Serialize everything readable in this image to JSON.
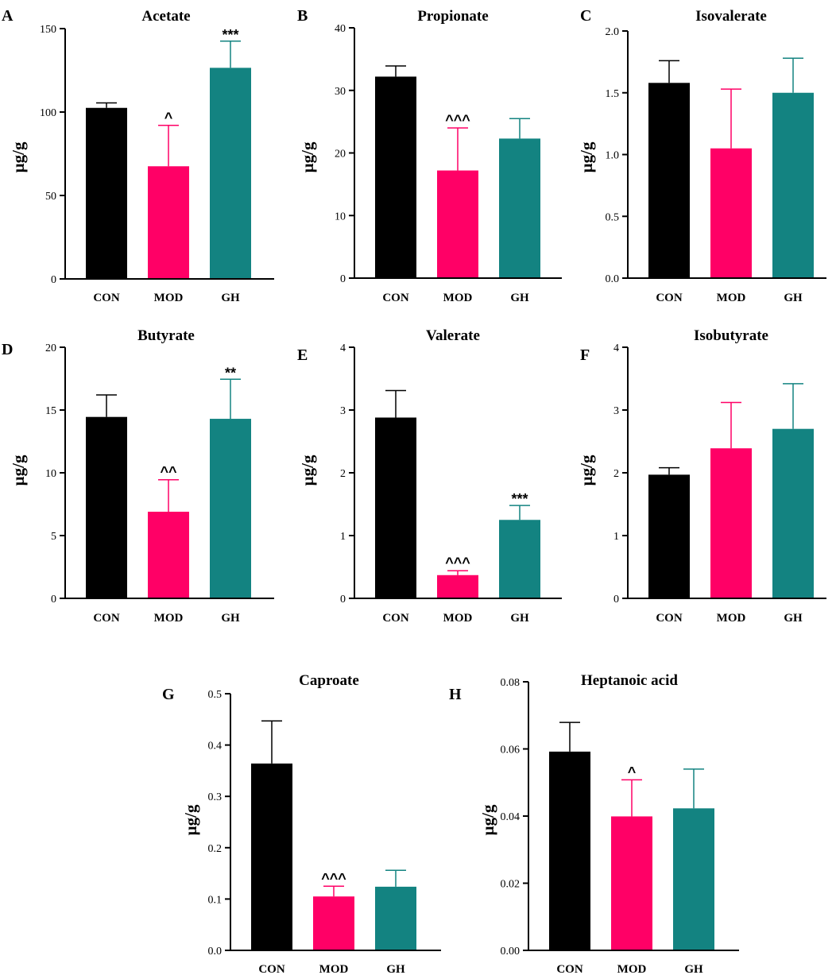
{
  "figure": {
    "y_axis_unit": "µg/g"
  },
  "colors": {
    "CON": "#000000",
    "MOD": "#ff0066",
    "GH": "#138381"
  },
  "chart_data": [
    {
      "panel": "A",
      "title": "Acetate",
      "type": "bar",
      "ylabel": "µg/g",
      "categories": [
        "CON",
        "MOD",
        "GH"
      ],
      "values": [
        102.5,
        67.5,
        126.5
      ],
      "errors": [
        3,
        24.5,
        16
      ],
      "ylim": [
        0,
        150
      ],
      "yticks": [
        "0",
        "50",
        "100",
        "150"
      ],
      "tick_values": [
        0,
        50,
        100,
        150
      ],
      "annotations": [
        "",
        "^",
        "***"
      ]
    },
    {
      "panel": "B",
      "title": "Propionate",
      "type": "bar",
      "ylabel": "µg/g",
      "categories": [
        "CON",
        "MOD",
        "GH"
      ],
      "values": [
        32.2,
        17.2,
        22.3
      ],
      "errors": [
        1.7,
        6.8,
        3.2
      ],
      "ylim": [
        0,
        40
      ],
      "yticks": [
        "0",
        "10",
        "20",
        "30",
        "40"
      ],
      "tick_values": [
        0,
        10,
        20,
        30,
        40
      ],
      "annotations": [
        "",
        "^^^",
        ""
      ]
    },
    {
      "panel": "C",
      "title": "Isovalerate",
      "type": "bar",
      "ylabel": "µg/g",
      "categories": [
        "CON",
        "MOD",
        "GH"
      ],
      "values": [
        1.58,
        1.05,
        1.5
      ],
      "errors": [
        0.18,
        0.48,
        0.28
      ],
      "ylim": [
        0,
        2.0
      ],
      "yticks": [
        "0.0",
        "0.5",
        "1.0",
        "1.5",
        "2.0"
      ],
      "tick_values": [
        0,
        0.5,
        1.0,
        1.5,
        2.0
      ],
      "annotations": [
        "",
        "",
        ""
      ]
    },
    {
      "panel": "D",
      "title": "Butyrate",
      "type": "bar",
      "ylabel": "µg/g",
      "categories": [
        "CON",
        "MOD",
        "GH"
      ],
      "values": [
        14.45,
        6.9,
        14.3
      ],
      "errors": [
        1.75,
        2.55,
        3.15
      ],
      "ylim": [
        0,
        20
      ],
      "yticks": [
        "0",
        "5",
        "10",
        "15",
        "20"
      ],
      "tick_values": [
        0,
        5,
        10,
        15,
        20
      ],
      "annotations": [
        "",
        "^^",
        "**"
      ]
    },
    {
      "panel": "E",
      "title": "Valerate",
      "type": "bar",
      "ylabel": "µg/g",
      "categories": [
        "CON",
        "MOD",
        "GH"
      ],
      "values": [
        2.88,
        0.37,
        1.25
      ],
      "errors": [
        0.43,
        0.07,
        0.23
      ],
      "ylim": [
        0,
        4
      ],
      "yticks": [
        "0",
        "1",
        "2",
        "3",
        "4"
      ],
      "tick_values": [
        0,
        1,
        2,
        3,
        4
      ],
      "annotations": [
        "",
        "^^^",
        "***"
      ]
    },
    {
      "panel": "F",
      "title": "Isobutyrate",
      "type": "bar",
      "ylabel": "µg/g",
      "categories": [
        "CON",
        "MOD",
        "GH"
      ],
      "values": [
        1.97,
        2.39,
        2.7
      ],
      "errors": [
        0.11,
        0.73,
        0.72
      ],
      "ylim": [
        0,
        4
      ],
      "yticks": [
        "0",
        "1",
        "2",
        "3",
        "4"
      ],
      "tick_values": [
        0,
        1,
        2,
        3,
        4
      ],
      "annotations": [
        "",
        "",
        ""
      ]
    },
    {
      "panel": "G",
      "title": "Caproate",
      "type": "bar",
      "ylabel": "µg/g",
      "categories": [
        "CON",
        "MOD",
        "GH"
      ],
      "values": [
        0.364,
        0.105,
        0.124
      ],
      "errors": [
        0.083,
        0.02,
        0.032
      ],
      "ylim": [
        0,
        0.5
      ],
      "yticks": [
        "0.0",
        "0.1",
        "0.2",
        "0.3",
        "0.4",
        "0.5"
      ],
      "tick_values": [
        0,
        0.1,
        0.2,
        0.3,
        0.4,
        0.5
      ],
      "annotations": [
        "",
        "^^^",
        ""
      ]
    },
    {
      "panel": "H",
      "title": "Heptanoic acid",
      "type": "bar",
      "ylabel": "µg/g",
      "categories": [
        "CON",
        "MOD",
        "GH"
      ],
      "values": [
        0.0592,
        0.0399,
        0.0423
      ],
      "errors": [
        0.0087,
        0.0109,
        0.0117
      ],
      "ylim": [
        0,
        0.08
      ],
      "yticks": [
        "0.00",
        "0.02",
        "0.04",
        "0.06",
        "0.08"
      ],
      "tick_values": [
        0,
        0.02,
        0.04,
        0.06,
        0.08
      ],
      "annotations": [
        "",
        "^",
        ""
      ]
    }
  ]
}
